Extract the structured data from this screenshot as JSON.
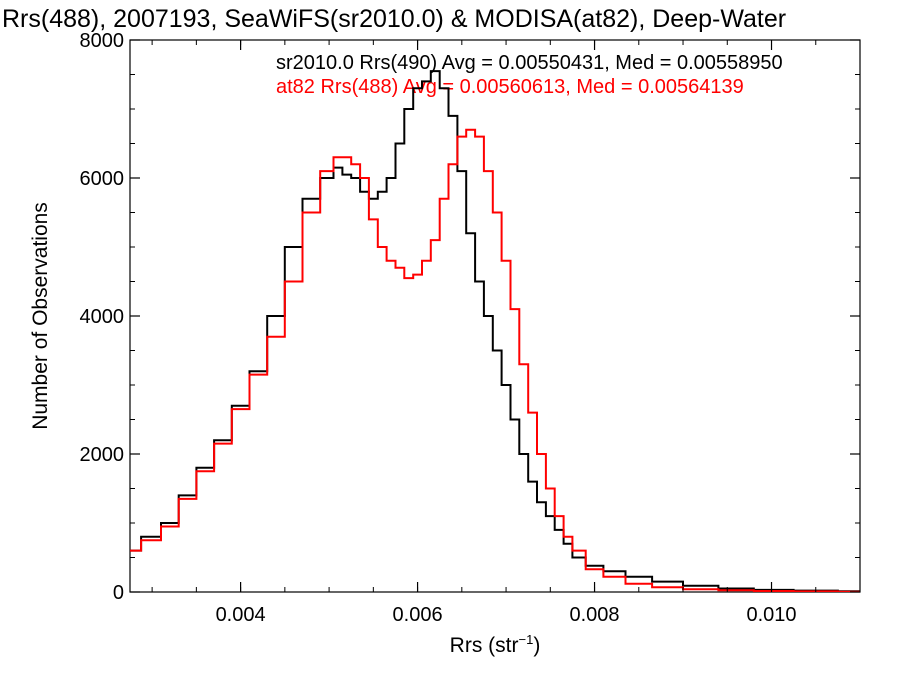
{
  "chart_data": {
    "type": "line",
    "step": true,
    "title": "Rrs(488), 2007193, SeaWiFS(sr2010.0) & MODISA(at82), Deep-Water",
    "xlabel": "Rrs (str",
    "xlabel_sup": "−1",
    "xlabel_suffix": ")",
    "ylabel": "Number of Observations",
    "xlim": [
      0.00275,
      0.011
    ],
    "ylim": [
      0,
      8000
    ],
    "x_ticks": [
      0.004,
      0.006,
      0.008,
      0.01
    ],
    "x_tick_labels": [
      "0.004",
      "0.006",
      "0.008",
      "0.010"
    ],
    "y_ticks": [
      0,
      2000,
      4000,
      6000,
      8000
    ],
    "y_tick_labels": [
      "0",
      "2000",
      "4000",
      "6000",
      "8000"
    ],
    "grid": false,
    "legend_position": "top-right",
    "series": [
      {
        "name": "sr2010.0 Rrs(490) Avg = 0.00550431, Med = 0.00558950",
        "color": "#000000",
        "x": [
          0.00275,
          0.003,
          0.0032,
          0.0034,
          0.0036,
          0.0038,
          0.004,
          0.0042,
          0.0044,
          0.0046,
          0.0048,
          0.005,
          0.0051,
          0.0052,
          0.0053,
          0.0054,
          0.0055,
          0.0056,
          0.0057,
          0.0058,
          0.0059,
          0.006,
          0.0061,
          0.0062,
          0.0063,
          0.0064,
          0.0065,
          0.0066,
          0.0067,
          0.0068,
          0.0069,
          0.007,
          0.0071,
          0.0072,
          0.0073,
          0.0074,
          0.0075,
          0.0076,
          0.0077,
          0.0078,
          0.008,
          0.0082,
          0.0085,
          0.0088,
          0.0092,
          0.0096,
          0.01,
          0.0105,
          0.011
        ],
        "y": [
          600,
          800,
          1000,
          1400,
          1800,
          2200,
          2700,
          3200,
          4000,
          5000,
          5700,
          6000,
          6150,
          6050,
          6000,
          5800,
          5700,
          5800,
          6000,
          6500,
          7000,
          7300,
          7400,
          7550,
          7300,
          6900,
          6100,
          5200,
          4500,
          4000,
          3500,
          3000,
          2500,
          2000,
          1600,
          1300,
          1100,
          900,
          700,
          500,
          380,
          300,
          220,
          150,
          90,
          50,
          30,
          20,
          10
        ]
      },
      {
        "name": "at82 Rrs(488) Avg = 0.00560613, Med = 0.00564139",
        "color": "#ff0000",
        "x": [
          0.00275,
          0.003,
          0.0032,
          0.0034,
          0.0036,
          0.0038,
          0.004,
          0.0042,
          0.0044,
          0.0046,
          0.0048,
          0.005,
          0.0051,
          0.0052,
          0.0053,
          0.0054,
          0.0055,
          0.0056,
          0.0057,
          0.0058,
          0.0059,
          0.006,
          0.0061,
          0.0062,
          0.0063,
          0.0064,
          0.0065,
          0.0066,
          0.0067,
          0.0068,
          0.0069,
          0.007,
          0.0071,
          0.0072,
          0.0073,
          0.0074,
          0.0075,
          0.0076,
          0.0077,
          0.0078,
          0.008,
          0.0082,
          0.0085,
          0.0088,
          0.0092,
          0.0096,
          0.01,
          0.0105,
          0.011
        ],
        "y": [
          600,
          750,
          950,
          1350,
          1750,
          2150,
          2650,
          3150,
          3700,
          4500,
          5500,
          6100,
          6300,
          6300,
          6200,
          6000,
          5400,
          5000,
          4800,
          4700,
          4550,
          4600,
          4800,
          5100,
          5700,
          6200,
          6600,
          6700,
          6600,
          6100,
          5500,
          4800,
          4100,
          3300,
          2600,
          2000,
          1500,
          1100,
          800,
          600,
          330,
          220,
          120,
          70,
          40,
          25,
          15,
          8,
          5
        ]
      }
    ]
  }
}
